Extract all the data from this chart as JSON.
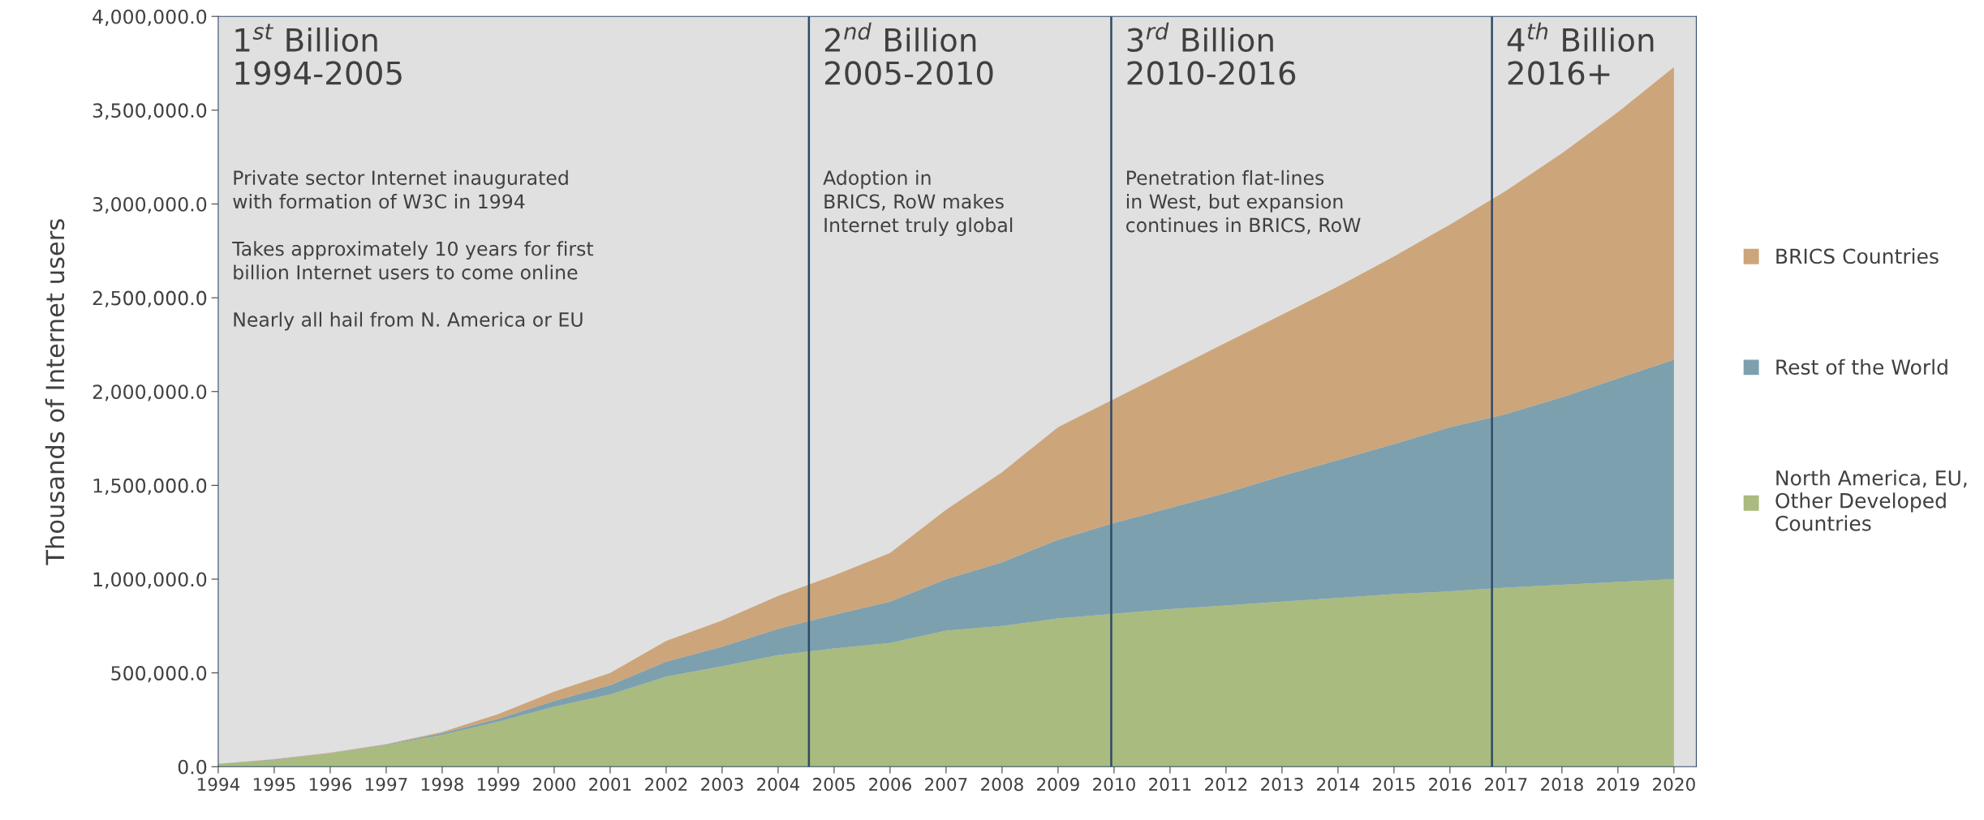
{
  "chart_data": {
    "type": "area",
    "stacked": true,
    "ylabel": "Thousands of Internet users",
    "x": [
      1994,
      1995,
      1996,
      1997,
      1998,
      1999,
      2000,
      2001,
      2002,
      2003,
      2004,
      2005,
      2006,
      2007,
      2008,
      2009,
      2010,
      2011,
      2012,
      2013,
      2014,
      2015,
      2016,
      2017,
      2018,
      2019,
      2020
    ],
    "series": [
      {
        "name": "North America, EU, Other Developed Countries",
        "color": "#a9bb7e",
        "values": [
          15000,
          35000,
          70000,
          115000,
          170000,
          240000,
          320000,
          385000,
          480000,
          535000,
          595000,
          630000,
          660000,
          725000,
          750000,
          790000,
          815000,
          840000,
          860000,
          880000,
          900000,
          920000,
          935000,
          955000,
          970000,
          985000,
          1000000
        ]
      },
      {
        "name": "Rest of the World",
        "color": "#7da0ae",
        "values": [
          0,
          3000,
          2000,
          3000,
          8000,
          15000,
          30000,
          50000,
          80000,
          105000,
          140000,
          180000,
          220000,
          275000,
          340000,
          420000,
          485000,
          540000,
          600000,
          670000,
          735000,
          800000,
          875000,
          925000,
          1000000,
          1085000,
          1170000
        ]
      },
      {
        "name": "BRICS Countries",
        "color": "#cca57a",
        "values": [
          0,
          2000,
          3000,
          2000,
          7000,
          25000,
          50000,
          65000,
          110000,
          140000,
          175000,
          210000,
          260000,
          370000,
          480000,
          600000,
          660000,
          730000,
          800000,
          860000,
          925000,
          1000000,
          1080000,
          1190000,
          1300000,
          1420000,
          1560000
        ]
      }
    ],
    "xlim": [
      1994,
      2020.4
    ],
    "xticks": [
      1994,
      1995,
      1996,
      1997,
      1998,
      1999,
      2000,
      2001,
      2002,
      2003,
      2004,
      2005,
      2006,
      2007,
      2008,
      2009,
      2010,
      2011,
      2012,
      2013,
      2014,
      2015,
      2016,
      2017,
      2018,
      2019,
      2020
    ],
    "ylim": [
      0,
      4000000
    ],
    "yticks": [
      {
        "value": 0,
        "label": "0.0"
      },
      {
        "value": 500000,
        "label": "500,000.0"
      },
      {
        "value": 1000000,
        "label": "1,000,000.0"
      },
      {
        "value": 1500000,
        "label": "1,500,000.0"
      },
      {
        "value": 2000000,
        "label": "2,000,000.0"
      },
      {
        "value": 2500000,
        "label": "2,500,000.0"
      },
      {
        "value": 3000000,
        "label": "3,000,000.0"
      },
      {
        "value": 3500000,
        "label": "3,500,000.0"
      },
      {
        "value": 4000000,
        "label": "4,000,000.0"
      }
    ],
    "bands": [
      {
        "axis": "x",
        "from": 1994,
        "to": 2004.55,
        "label": "1$^{st}$ Billion\n1994-2005",
        "color": "#e0e0e0"
      },
      {
        "axis": "x",
        "from": 2004.55,
        "to": 2009.95,
        "label": "2$^{nd}$ Billion\n2005-2010",
        "color": "#e0e0e0"
      },
      {
        "axis": "x",
        "from": 2009.95,
        "to": 2016.75,
        "label": "3$^{rd}$ Billion\n2010-2016",
        "color": "#e0e0e0"
      },
      {
        "axis": "x",
        "from": 2016.75,
        "to": 2020.4,
        "label": "4$^{th}$ Billion\n2016+",
        "color": "#e0e0e0"
      }
    ],
    "ref_lines": [
      {
        "axis": "x",
        "value": 2004.55,
        "color": "#2f4a66",
        "line_style": "solid"
      },
      {
        "axis": "x",
        "value": 2009.95,
        "color": "#2f4a66",
        "line_style": "solid"
      },
      {
        "axis": "x",
        "value": 2016.75,
        "color": "#2f4a66",
        "line_style": "solid"
      }
    ],
    "annotations": [
      "Private sector Internet inaugurated\nwith formation of W3C in 1994\n\nTakes approximately 10 years for first\nbillion Internet users to come online\n\nNearly all hail from N. America or EU",
      "Adoption in\nBRICS, RoW makes\nInternet truly global",
      "Penetration flat-lines\nin West, but expansion\ncontinues in BRICS, RoW"
    ],
    "grid": false,
    "legend": "right"
  }
}
